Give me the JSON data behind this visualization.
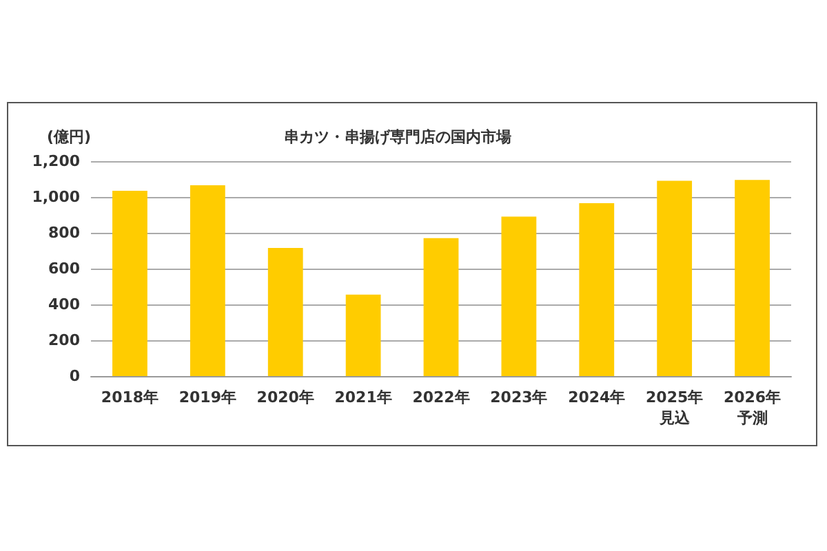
{
  "chart_data": {
    "type": "bar",
    "title": "串カツ・串揚げ専門店の国内市場",
    "ylabel": "(億円)",
    "categories": [
      "2018年",
      "2019年",
      "2020年",
      "2021年",
      "2022年",
      "2023年",
      "2024年",
      "2025年見込",
      "2026年予測"
    ],
    "values": [
      1035,
      1065,
      715,
      455,
      770,
      890,
      965,
      1090,
      1095
    ],
    "color": "#ffcc00",
    "ylim": [
      0,
      1200
    ],
    "yticks": [
      0,
      200,
      400,
      600,
      800,
      {
        "value": 1000,
        "label": "1,000"
      },
      {
        "value": 1200,
        "label": "1,200"
      }
    ],
    "grid": "y"
  }
}
